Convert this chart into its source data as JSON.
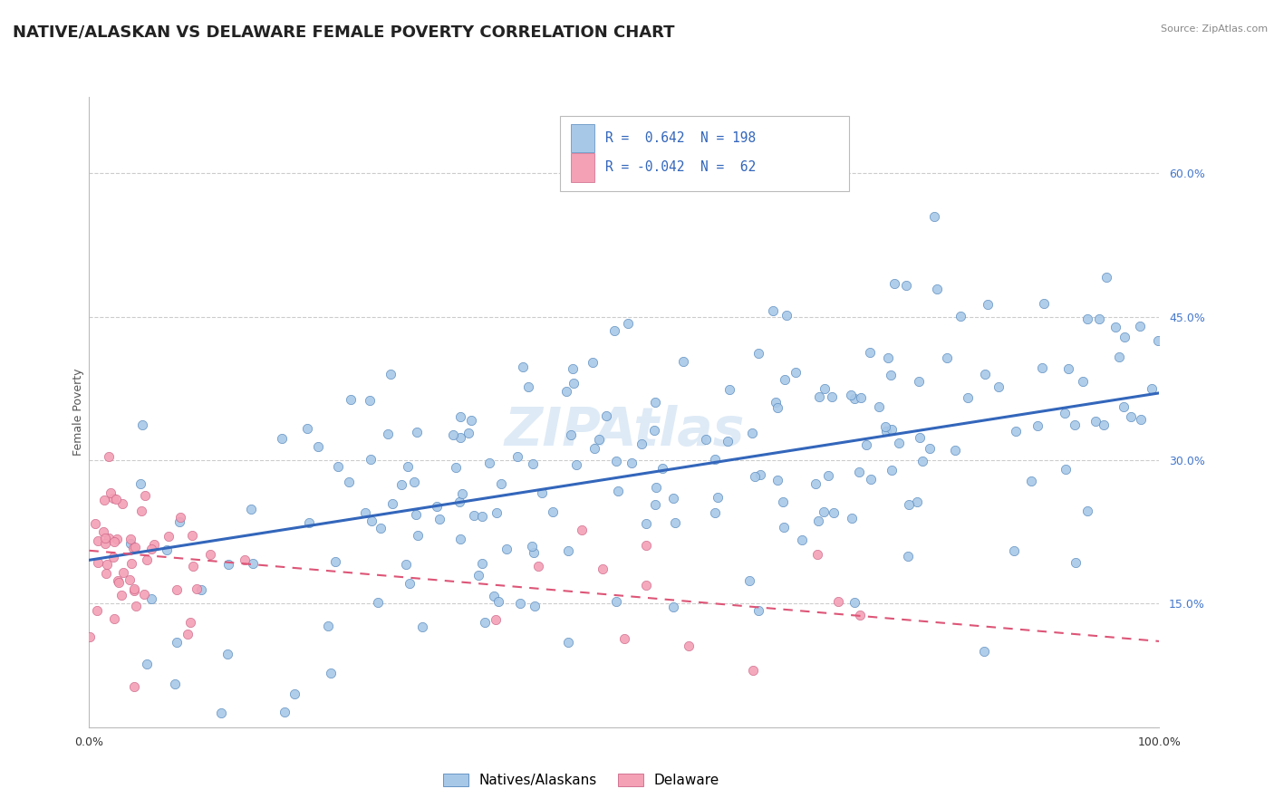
{
  "title": "NATIVE/ALASKAN VS DELAWARE FEMALE POVERTY CORRELATION CHART",
  "source": "Source: ZipAtlas.com",
  "ylabel": "Female Poverty",
  "ytick_labels": [
    "15.0%",
    "30.0%",
    "45.0%",
    "60.0%"
  ],
  "ytick_values": [
    0.15,
    0.3,
    0.45,
    0.6
  ],
  "xlim": [
    0.0,
    1.0
  ],
  "ylim": [
    0.02,
    0.68
  ],
  "blue_R": 0.642,
  "blue_N": 198,
  "pink_R": -0.042,
  "pink_N": 62,
  "blue_scatter_color": "#a8c8e8",
  "blue_edge_color": "#5588bb",
  "blue_line_color": "#3366bb",
  "pink_scatter_color": "#f4a0b5",
  "pink_edge_color": "#cc6688",
  "pink_line_color": "#dd5577",
  "legend_blue_label": "Natives/Alaskans",
  "legend_pink_label": "Delaware",
  "background_color": "#ffffff",
  "grid_color": "#cccccc",
  "title_fontsize": 13,
  "watermark_color": "#c8ddf0",
  "blue_slope": 0.175,
  "blue_intercept": 0.195,
  "pink_slope": -0.095,
  "pink_intercept": 0.205
}
